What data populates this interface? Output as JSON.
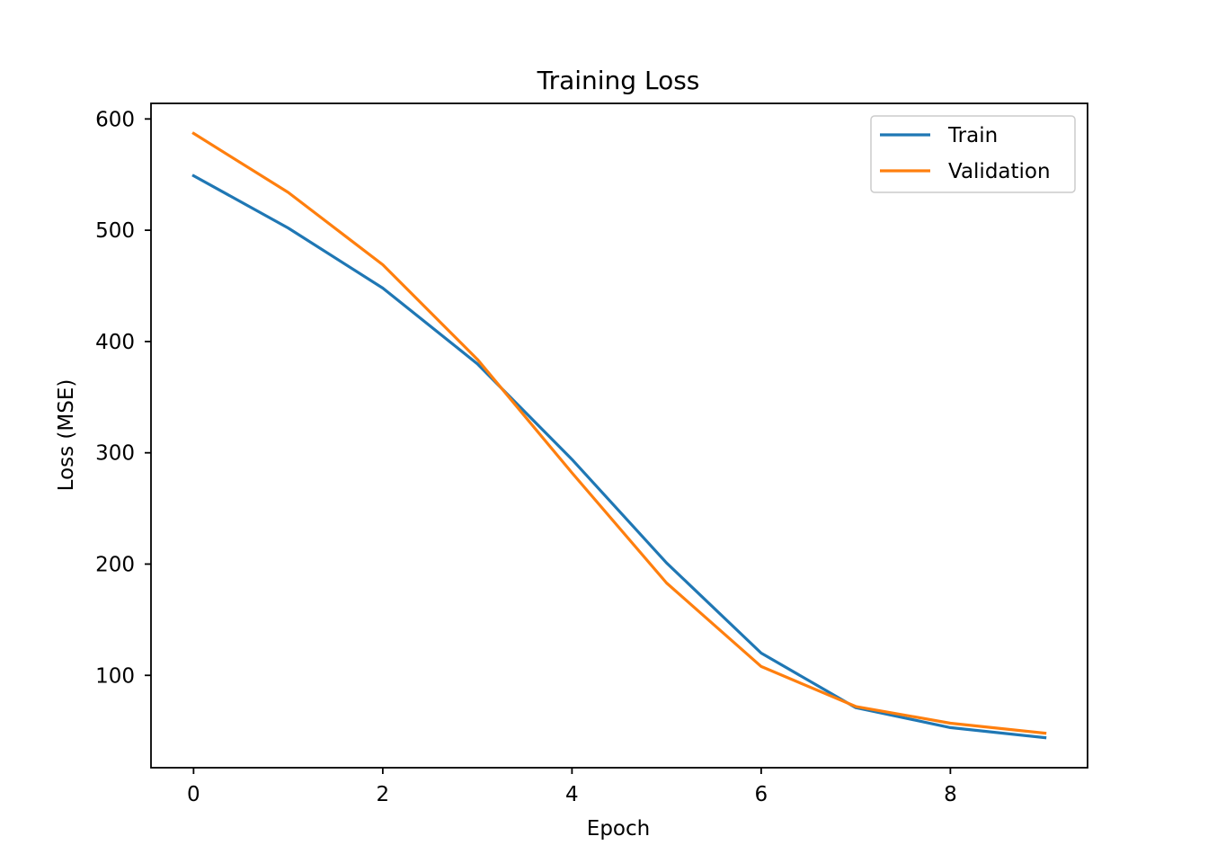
{
  "chart_data": {
    "type": "line",
    "title": "Training Loss",
    "xlabel": "Epoch",
    "ylabel": "Loss (MSE)",
    "x": [
      0,
      1,
      2,
      3,
      4,
      5,
      6,
      7,
      8,
      9
    ],
    "xlim": [
      -0.45,
      9.45
    ],
    "ylim": [
      17,
      614
    ],
    "xticks": [
      0,
      2,
      4,
      6,
      8
    ],
    "yticks": [
      100,
      200,
      300,
      400,
      500,
      600
    ],
    "grid": false,
    "legend_position": "top-right",
    "series": [
      {
        "name": "Train",
        "color": "#1f77b4",
        "values": [
          549,
          502,
          448,
          380,
          294,
          201,
          120,
          71,
          53,
          44
        ]
      },
      {
        "name": "Validation",
        "color": "#ff7f0e",
        "values": [
          587,
          534,
          469,
          384,
          282,
          183,
          108,
          72,
          57,
          48
        ]
      }
    ]
  }
}
